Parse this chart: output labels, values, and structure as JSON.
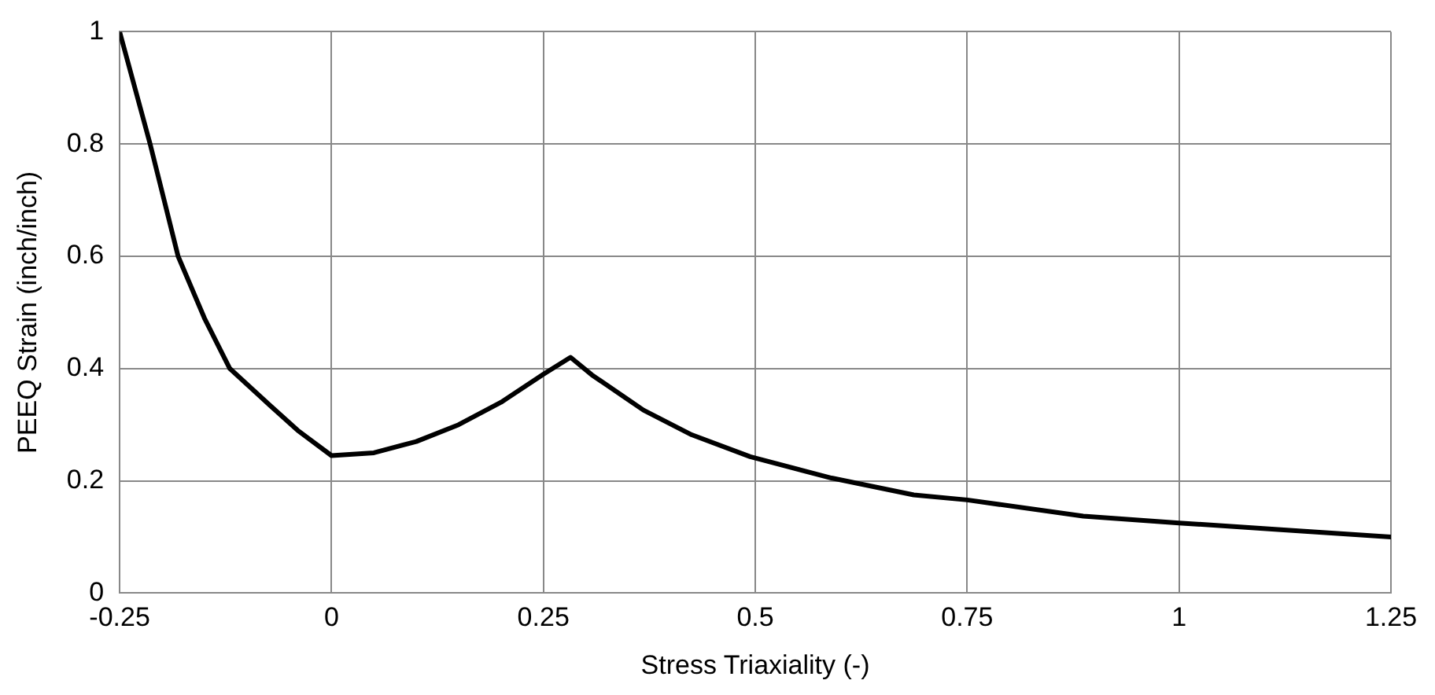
{
  "chart_data": {
    "type": "line",
    "xlabel": "Stress Triaxiality (-)",
    "ylabel": "PEEQ Strain (inch/inch)",
    "x": [
      -0.25,
      -0.214,
      -0.181,
      -0.15,
      -0.12,
      -0.073,
      -0.04,
      0,
      0.05,
      0.1,
      0.15,
      0.2,
      0.25,
      0.282,
      0.307,
      0.368,
      0.425,
      0.494,
      0.59,
      0.687,
      0.75,
      0.887,
      1.0,
      1.12,
      1.25
    ],
    "series": [
      {
        "color": "#000000",
        "values": [
          1.0,
          0.8,
          0.6,
          0.49,
          0.4,
          0.335,
          0.29,
          0.245,
          0.25,
          0.27,
          0.3,
          0.34,
          0.39,
          0.42,
          0.389,
          0.326,
          0.282,
          0.243,
          0.205,
          0.175,
          0.166,
          0.137,
          0.125,
          0.113,
          0.1
        ]
      }
    ],
    "xlim": [
      -0.25,
      1.25
    ],
    "xticks": [
      {
        "value": -0.25,
        "label": "-0.25"
      },
      0,
      0.25,
      0.5,
      0.75,
      1,
      1.25
    ],
    "ylim": [
      0,
      1
    ],
    "yticks": [
      0,
      0.2,
      0.4,
      0.6,
      0.8,
      1
    ],
    "grid": true,
    "legend": false,
    "marker": "none",
    "line_style": "solid"
  }
}
